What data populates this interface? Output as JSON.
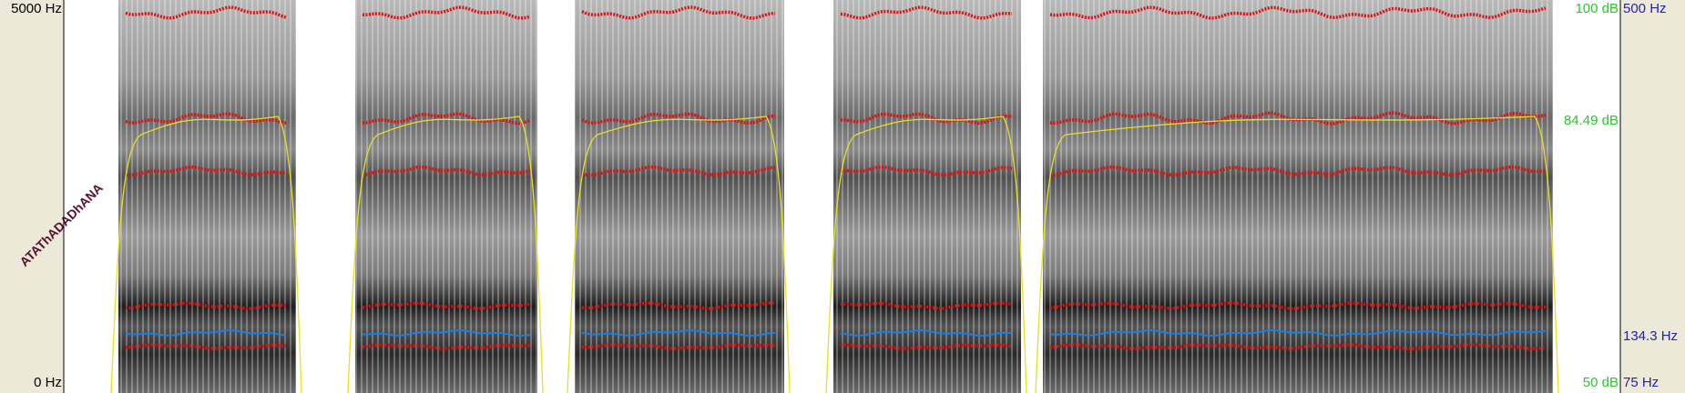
{
  "left_axis": {
    "top": "5000 Hz",
    "bottom": "0 Hz"
  },
  "annotation": "ATAThADADhANA",
  "right_axis": {
    "intensity_top": "100 dB",
    "intensity_mark": "84.49 dB",
    "intensity_bottom": "50 dB",
    "pitch_top": "500 Hz",
    "pitch_mark": "134.3 Hz",
    "pitch_bottom": "75 Hz"
  }
}
